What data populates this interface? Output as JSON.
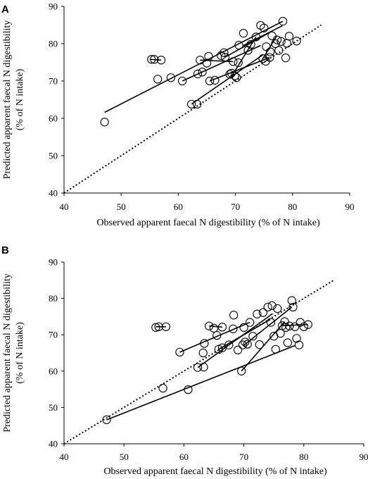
{
  "chart_data": [
    {
      "type": "scatter",
      "panel": "A",
      "xlabel": "Observed apparent faecal N digestibility (% of N intake)",
      "ylabel": [
        "Predicted apparent faecal N digestibility",
        "(% of N intake)"
      ],
      "xlim": [
        40,
        90
      ],
      "ylim": [
        40,
        90
      ],
      "xticks": [
        40,
        50,
        60,
        70,
        80,
        90
      ],
      "yticks": [
        40,
        50,
        60,
        70,
        80,
        90
      ],
      "reference_line": {
        "style": "dotted",
        "x": [
          40,
          85
        ],
        "y": [
          40,
          85
        ]
      },
      "regression_lines": [
        {
          "x": [
            47.1,
            78.3
          ],
          "y": [
            61.6,
            86.0
          ]
        },
        {
          "x": [
            55.0,
            57.0
          ],
          "y": [
            75.8,
            75.6
          ]
        },
        {
          "x": [
            63.8,
            69.6
          ],
          "y": [
            75.6,
            75.2
          ]
        },
        {
          "x": [
            62.3,
            74.8
          ],
          "y": [
            63.8,
            77.0
          ]
        },
        {
          "x": [
            60.7,
            74.4
          ],
          "y": [
            70.0,
            79.5
          ]
        },
        {
          "x": [
            65.5,
            76.0
          ],
          "y": [
            70.0,
            76.3
          ]
        },
        {
          "x": [
            68.2,
            76.0
          ],
          "y": [
            76.4,
            83.0
          ]
        },
        {
          "x": [
            69.3,
            73.6
          ],
          "y": [
            71.2,
            81.8
          ]
        },
        {
          "x": [
            71.4,
            78.2
          ],
          "y": [
            79.5,
            84.8
          ]
        },
        {
          "x": [
            74.8,
            77.2
          ],
          "y": [
            76.0,
            82.0
          ]
        }
      ],
      "points": [
        {
          "x": 47.1,
          "y": 59.0
        },
        {
          "x": 55.3,
          "y": 75.8
        },
        {
          "x": 55.8,
          "y": 75.8
        },
        {
          "x": 57.0,
          "y": 75.6
        },
        {
          "x": 58.7,
          "y": 70.9
        },
        {
          "x": 56.4,
          "y": 70.5
        },
        {
          "x": 60.7,
          "y": 70.0
        },
        {
          "x": 62.3,
          "y": 63.8
        },
        {
          "x": 63.3,
          "y": 63.8
        },
        {
          "x": 63.4,
          "y": 71.9
        },
        {
          "x": 64.2,
          "y": 72.4
        },
        {
          "x": 63.8,
          "y": 75.6
        },
        {
          "x": 65.3,
          "y": 76.6
        },
        {
          "x": 65.0,
          "y": 74.8
        },
        {
          "x": 65.5,
          "y": 70.0
        },
        {
          "x": 66.4,
          "y": 70.2
        },
        {
          "x": 67.5,
          "y": 76.8
        },
        {
          "x": 68.0,
          "y": 77.6
        },
        {
          "x": 68.2,
          "y": 76.4
        },
        {
          "x": 69.0,
          "y": 71.8
        },
        {
          "x": 69.3,
          "y": 72.1
        },
        {
          "x": 69.9,
          "y": 71.4
        },
        {
          "x": 70.2,
          "y": 70.9
        },
        {
          "x": 69.6,
          "y": 75.2
        },
        {
          "x": 70.5,
          "y": 74.9
        },
        {
          "x": 70.6,
          "y": 79.6
        },
        {
          "x": 71.4,
          "y": 82.8
        },
        {
          "x": 72.2,
          "y": 78.2
        },
        {
          "x": 72.7,
          "y": 79.8
        },
        {
          "x": 73.6,
          "y": 81.8
        },
        {
          "x": 74.4,
          "y": 84.9
        },
        {
          "x": 75.0,
          "y": 84.2
        },
        {
          "x": 75.4,
          "y": 79.2
        },
        {
          "x": 74.8,
          "y": 76.0
        },
        {
          "x": 75.3,
          "y": 75.3
        },
        {
          "x": 76.0,
          "y": 76.3
        },
        {
          "x": 76.1,
          "y": 77.8
        },
        {
          "x": 76.4,
          "y": 82.1
        },
        {
          "x": 77.0,
          "y": 80.0
        },
        {
          "x": 77.3,
          "y": 81.0
        },
        {
          "x": 77.6,
          "y": 78.2
        },
        {
          "x": 78.0,
          "y": 80.6
        },
        {
          "x": 78.3,
          "y": 86.0
        },
        {
          "x": 78.8,
          "y": 76.2
        },
        {
          "x": 79.4,
          "y": 82.0
        },
        {
          "x": 79.0,
          "y": 80.1
        },
        {
          "x": 80.7,
          "y": 80.7
        }
      ]
    },
    {
      "type": "scatter",
      "panel": "B",
      "xlabel": "Observed apparent faecal N digestibility (% of N intake)",
      "ylabel": [
        "Predicted apparent faecal N digestibility",
        "(% of N intake)"
      ],
      "xlim": [
        40,
        90
      ],
      "ylim": [
        40,
        90
      ],
      "xticks": [
        40,
        50,
        60,
        70,
        80,
        90
      ],
      "yticks": [
        40,
        50,
        60,
        70,
        80,
        90
      ],
      "reference_line": {
        "style": "dotted",
        "x": [
          40,
          85
        ],
        "y": [
          40,
          85
        ]
      },
      "regression_lines": [
        {
          "x": [
            47.1,
            78.5
          ],
          "y": [
            46.6,
            67.0
          ]
        },
        {
          "x": [
            55.3,
            57.0
          ],
          "y": [
            72.2,
            72.2
          ]
        },
        {
          "x": [
            64.2,
            66.4
          ],
          "y": [
            72.4,
            72.1
          ]
        },
        {
          "x": [
            59.3,
            71.0
          ],
          "y": [
            65.2,
            73.4
          ]
        },
        {
          "x": [
            62.3,
            74.8
          ],
          "y": [
            61.0,
            75.8
          ]
        },
        {
          "x": [
            65.8,
            74.4
          ],
          "y": [
            66.0,
            74.2
          ]
        },
        {
          "x": [
            69.6,
            76.8
          ],
          "y": [
            60.0,
            73.6
          ]
        },
        {
          "x": [
            70.0,
            78.0
          ],
          "y": [
            67.1,
            77.6
          ]
        },
        {
          "x": [
            76.5,
            80.7
          ],
          "y": [
            72.5,
            72.8
          ]
        }
      ],
      "points": [
        {
          "x": 47.1,
          "y": 46.6
        },
        {
          "x": 55.3,
          "y": 72.0
        },
        {
          "x": 55.8,
          "y": 72.2
        },
        {
          "x": 57.0,
          "y": 72.2
        },
        {
          "x": 56.5,
          "y": 55.3
        },
        {
          "x": 60.7,
          "y": 54.9
        },
        {
          "x": 59.3,
          "y": 65.2
        },
        {
          "x": 62.3,
          "y": 61.0
        },
        {
          "x": 63.3,
          "y": 61.1
        },
        {
          "x": 63.4,
          "y": 67.6
        },
        {
          "x": 63.2,
          "y": 65.0
        },
        {
          "x": 64.2,
          "y": 72.4
        },
        {
          "x": 65.0,
          "y": 71.8
        },
        {
          "x": 66.4,
          "y": 72.1
        },
        {
          "x": 65.5,
          "y": 69.8
        },
        {
          "x": 65.8,
          "y": 66.0
        },
        {
          "x": 66.4,
          "y": 66.4
        },
        {
          "x": 67.5,
          "y": 67.2
        },
        {
          "x": 68.3,
          "y": 75.4
        },
        {
          "x": 68.2,
          "y": 71.6
        },
        {
          "x": 69.0,
          "y": 65.8
        },
        {
          "x": 69.6,
          "y": 60.0
        },
        {
          "x": 69.8,
          "y": 67.2
        },
        {
          "x": 70.2,
          "y": 68.0
        },
        {
          "x": 70.0,
          "y": 72.0
        },
        {
          "x": 70.6,
          "y": 67.4
        },
        {
          "x": 71.0,
          "y": 73.4
        },
        {
          "x": 71.5,
          "y": 69.6
        },
        {
          "x": 72.2,
          "y": 75.7
        },
        {
          "x": 72.6,
          "y": 67.3
        },
        {
          "x": 73.2,
          "y": 76.1
        },
        {
          "x": 74.0,
          "y": 77.6
        },
        {
          "x": 74.7,
          "y": 78.0
        },
        {
          "x": 74.5,
          "y": 73.4
        },
        {
          "x": 75.0,
          "y": 69.6
        },
        {
          "x": 75.3,
          "y": 66.0
        },
        {
          "x": 75.6,
          "y": 77.2
        },
        {
          "x": 76.1,
          "y": 70.4
        },
        {
          "x": 76.4,
          "y": 72.5
        },
        {
          "x": 76.8,
          "y": 73.6
        },
        {
          "x": 77.0,
          "y": 72.0
        },
        {
          "x": 77.3,
          "y": 67.8
        },
        {
          "x": 77.6,
          "y": 72.4
        },
        {
          "x": 78.0,
          "y": 79.4
        },
        {
          "x": 78.2,
          "y": 77.6
        },
        {
          "x": 78.5,
          "y": 72.2
        },
        {
          "x": 78.8,
          "y": 69.0
        },
        {
          "x": 79.2,
          "y": 67.2
        },
        {
          "x": 79.4,
          "y": 73.4
        },
        {
          "x": 80.0,
          "y": 72.2
        },
        {
          "x": 80.7,
          "y": 72.8
        }
      ]
    }
  ]
}
